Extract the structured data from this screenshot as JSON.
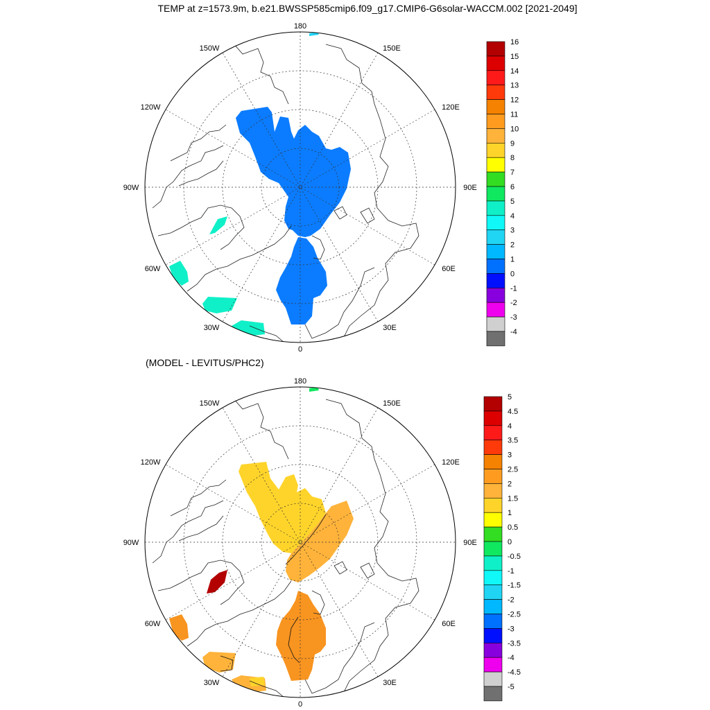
{
  "figure": {
    "title": "TEMP at z=1573.9m, b.e21.BWSSP585cmip6.f09_g17.CMIP6-G6solar-WACCM.002 [2021-2049]",
    "subtitle": "(MODEL - LEVITUS/PHC2)"
  },
  "map_labels": {
    "lon_180": "180",
    "lon_150e": "150E",
    "lon_120e": "120E",
    "lon_90e": "90E",
    "lon_60e": "60E",
    "lon_30e": "30E",
    "lon_0": "0",
    "lon_30w": "30W",
    "lon_60w": "60W",
    "lon_90w": "90W",
    "lon_120w": "120W",
    "lon_150w": "150W"
  },
  "top_colorbar": {
    "labels": [
      "16",
      "15",
      "14",
      "13",
      "12",
      "11",
      "10",
      "9",
      "8",
      "7",
      "6",
      "5",
      "4",
      "3",
      "2",
      "1",
      "0",
      "-1",
      "-2",
      "-3",
      "-4"
    ],
    "colors": [
      "#b30000",
      "#dd0000",
      "#ff1a1a",
      "#ff3a0a",
      "#f58200",
      "#ff9c20",
      "#ffb33a",
      "#ffd42a",
      "#ffff00",
      "#33dd22",
      "#10e860",
      "#10f0c8",
      "#10f8f8",
      "#20d4f4",
      "#00b8ff",
      "#0070ff",
      "#0010ff",
      "#8800dd",
      "#ee00ee",
      "#d0d0d0",
      "#707070"
    ]
  },
  "bottom_colorbar": {
    "labels": [
      "5",
      "4.5",
      "4",
      "3.5",
      "3",
      "2.5",
      "2",
      "1.5",
      "1",
      "0.5",
      "0",
      "-0.5",
      "-1",
      "-1.5",
      "-2",
      "-2.5",
      "-3",
      "-3.5",
      "-4",
      "-4.5",
      "-5"
    ],
    "colors": [
      "#b30000",
      "#dd0000",
      "#ff1a1a",
      "#ff3a0a",
      "#f58200",
      "#ff9c20",
      "#ffb33a",
      "#ffd42a",
      "#ffff00",
      "#33dd22",
      "#10e860",
      "#10f0c8",
      "#10f8f8",
      "#20d4f4",
      "#00b8ff",
      "#0070ff",
      "#0010ff",
      "#8800dd",
      "#ee00ee",
      "#d0d0d0",
      "#707070"
    ]
  }
}
